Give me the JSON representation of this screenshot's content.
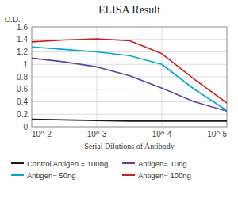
{
  "chart_data": {
    "type": "line",
    "title": "ELISA Result",
    "ylabel": "O.D.",
    "xlabel": "Serial Dilutions of Antibody",
    "x": [
      0.01,
      0.003162,
      0.001,
      0.0003162,
      0.0001,
      3.162e-05,
      1e-05
    ],
    "series": [
      {
        "name": "Control Antigen = 100ng",
        "color": "#1a1a1a",
        "values": [
          0.12,
          0.11,
          0.1,
          0.09,
          0.09,
          0.09,
          0.09
        ]
      },
      {
        "name": "Antigen= 10ng",
        "color": "#6040A0",
        "values": [
          1.1,
          1.04,
          0.96,
          0.82,
          0.62,
          0.4,
          0.25
        ]
      },
      {
        "name": "Antigen= 50ng",
        "color": "#00AACC",
        "values": [
          1.28,
          1.24,
          1.2,
          1.14,
          1.0,
          0.6,
          0.26
        ]
      },
      {
        "name": "Antigen= 100ng",
        "color": "#CC2020",
        "values": [
          1.36,
          1.39,
          1.41,
          1.38,
          1.17,
          0.76,
          0.38
        ]
      }
    ],
    "xlim": [
      0.01,
      1e-05
    ],
    "xticks": [
      {
        "value": 0.01,
        "label": "10^-2"
      },
      {
        "value": 0.001,
        "label": "10^-3"
      },
      {
        "value": 0.0001,
        "label": "10^-4"
      },
      {
        "value": 1e-05,
        "label": "10^-5"
      }
    ],
    "ylim": [
      0,
      1.6
    ],
    "yticks": [
      0,
      0.2,
      0.4,
      0.6,
      0.8,
      1,
      1.2,
      1.4,
      1.6
    ],
    "log": "x",
    "grid": true,
    "legend": "bottom"
  }
}
